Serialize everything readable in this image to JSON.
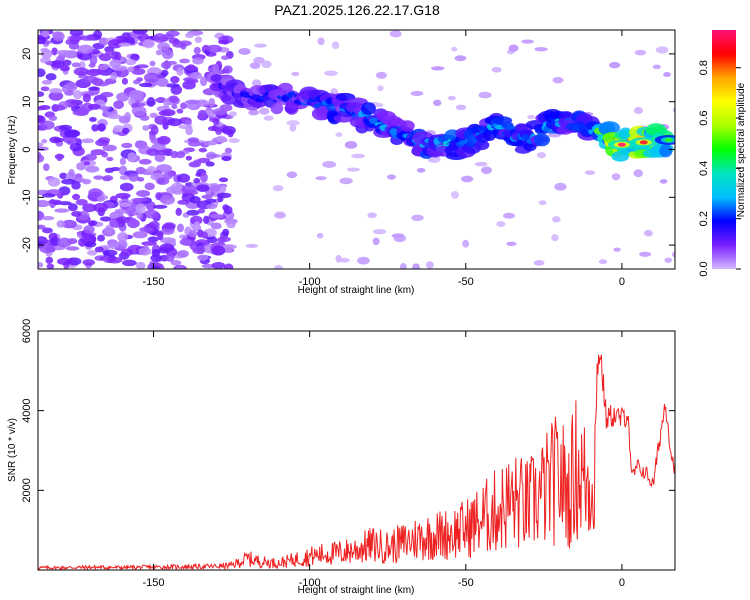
{
  "chart_data": [
    {
      "type": "heatmap",
      "title": "PAZ1.2025.126.22.17.G18",
      "xlabel": "Height of straight line (km)",
      "ylabel": "Frequency (Hz)",
      "xlim": [
        -187,
        17
      ],
      "ylim": [
        -25,
        25
      ],
      "x_ticks": [
        -150,
        -100,
        -50,
        0
      ],
      "y_ticks": [
        20,
        10,
        0,
        -10,
        -20
      ],
      "colorbar": {
        "label": "Normalized spectral amplitude",
        "range": [
          0,
          0.95
        ],
        "ticks": [
          0.0,
          0.2,
          0.4,
          0.6,
          0.8
        ],
        "colormap": [
          "#d4b8ff",
          "#7a1fff",
          "#0000ff",
          "#00bfff",
          "#00e5c0",
          "#00ff00",
          "#aaff00",
          "#ffff00",
          "#ffa500",
          "#ff0000",
          "#ff1177"
        ]
      },
      "ridge": [
        {
          "x": -130,
          "y": 14,
          "amp": 0.15
        },
        {
          "x": -120,
          "y": 11,
          "amp": 0.2
        },
        {
          "x": -110,
          "y": 11,
          "amp": 0.22
        },
        {
          "x": -100,
          "y": 10,
          "amp": 0.25
        },
        {
          "x": -90,
          "y": 9,
          "amp": 0.3
        },
        {
          "x": -80,
          "y": 6,
          "amp": 0.3
        },
        {
          "x": -70,
          "y": 3,
          "amp": 0.3
        },
        {
          "x": -60,
          "y": 1,
          "amp": 0.35
        },
        {
          "x": -50,
          "y": 1,
          "amp": 0.35
        },
        {
          "x": -40,
          "y": 5,
          "amp": 0.3
        },
        {
          "x": -30,
          "y": 2,
          "amp": 0.3
        },
        {
          "x": -20,
          "y": 6,
          "amp": 0.35
        },
        {
          "x": -10,
          "y": 4,
          "amp": 0.3
        },
        {
          "x": 0,
          "y": 1,
          "amp": 0.95
        },
        {
          "x": 7,
          "y": 1.5,
          "amp": 0.9
        },
        {
          "x": 15,
          "y": 2,
          "amp": 0.5
        }
      ]
    },
    {
      "type": "line",
      "xlabel": "Height of straight line (km)",
      "ylabel": "SNR (10 * v/v)",
      "xlim": [
        -187,
        17
      ],
      "ylim": [
        0,
        6000
      ],
      "x_ticks": [
        -150,
        -100,
        -50,
        0
      ],
      "y_ticks": [
        2000,
        4000,
        6000
      ],
      "series": [
        {
          "color": "#ee2222",
          "x": [
            -187,
            -180,
            -170,
            -160,
            -150,
            -140,
            -130,
            -125,
            -120,
            -115,
            -110,
            -105,
            -100,
            -95,
            -90,
            -85,
            -80,
            -75,
            -70,
            -65,
            -60,
            -55,
            -50,
            -45,
            -40,
            -35,
            -30,
            -25,
            -20,
            -17,
            -15,
            -12,
            -10,
            -8,
            -7,
            -5,
            -3,
            0,
            2,
            3,
            5,
            8,
            10,
            12,
            14,
            16,
            17
          ],
          "y": [
            100,
            100,
            120,
            110,
            130,
            140,
            160,
            200,
            500,
            350,
            300,
            450,
            600,
            700,
            750,
            900,
            1100,
            1000,
            1200,
            1400,
            1500,
            1600,
            1800,
            2200,
            2600,
            3000,
            2800,
            3400,
            4100,
            3300,
            4500,
            3900,
            3700,
            5500,
            6000,
            4100,
            4200,
            4100,
            4300,
            2500,
            2800,
            2600,
            2300,
            3500,
            4600,
            3000,
            2800
          ]
        }
      ]
    }
  ]
}
